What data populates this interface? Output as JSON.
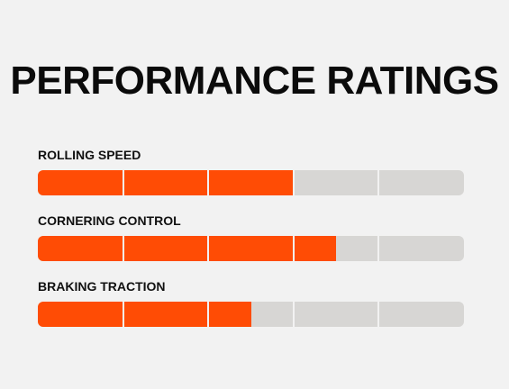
{
  "header": {
    "title": "PERFORMANCE RATINGS"
  },
  "ratings": [
    {
      "label": "ROLLING SPEED",
      "value": 3,
      "max": 5
    },
    {
      "label": "CORNERING CONTROL",
      "value": 3.5,
      "max": 5
    },
    {
      "label": "BRAKING TRACTION",
      "value": 2.5,
      "max": 5
    }
  ],
  "colors": {
    "background": "#f2f2f2",
    "fill": "#ff4c05",
    "track": "#d7d6d4",
    "text": "#111111"
  }
}
